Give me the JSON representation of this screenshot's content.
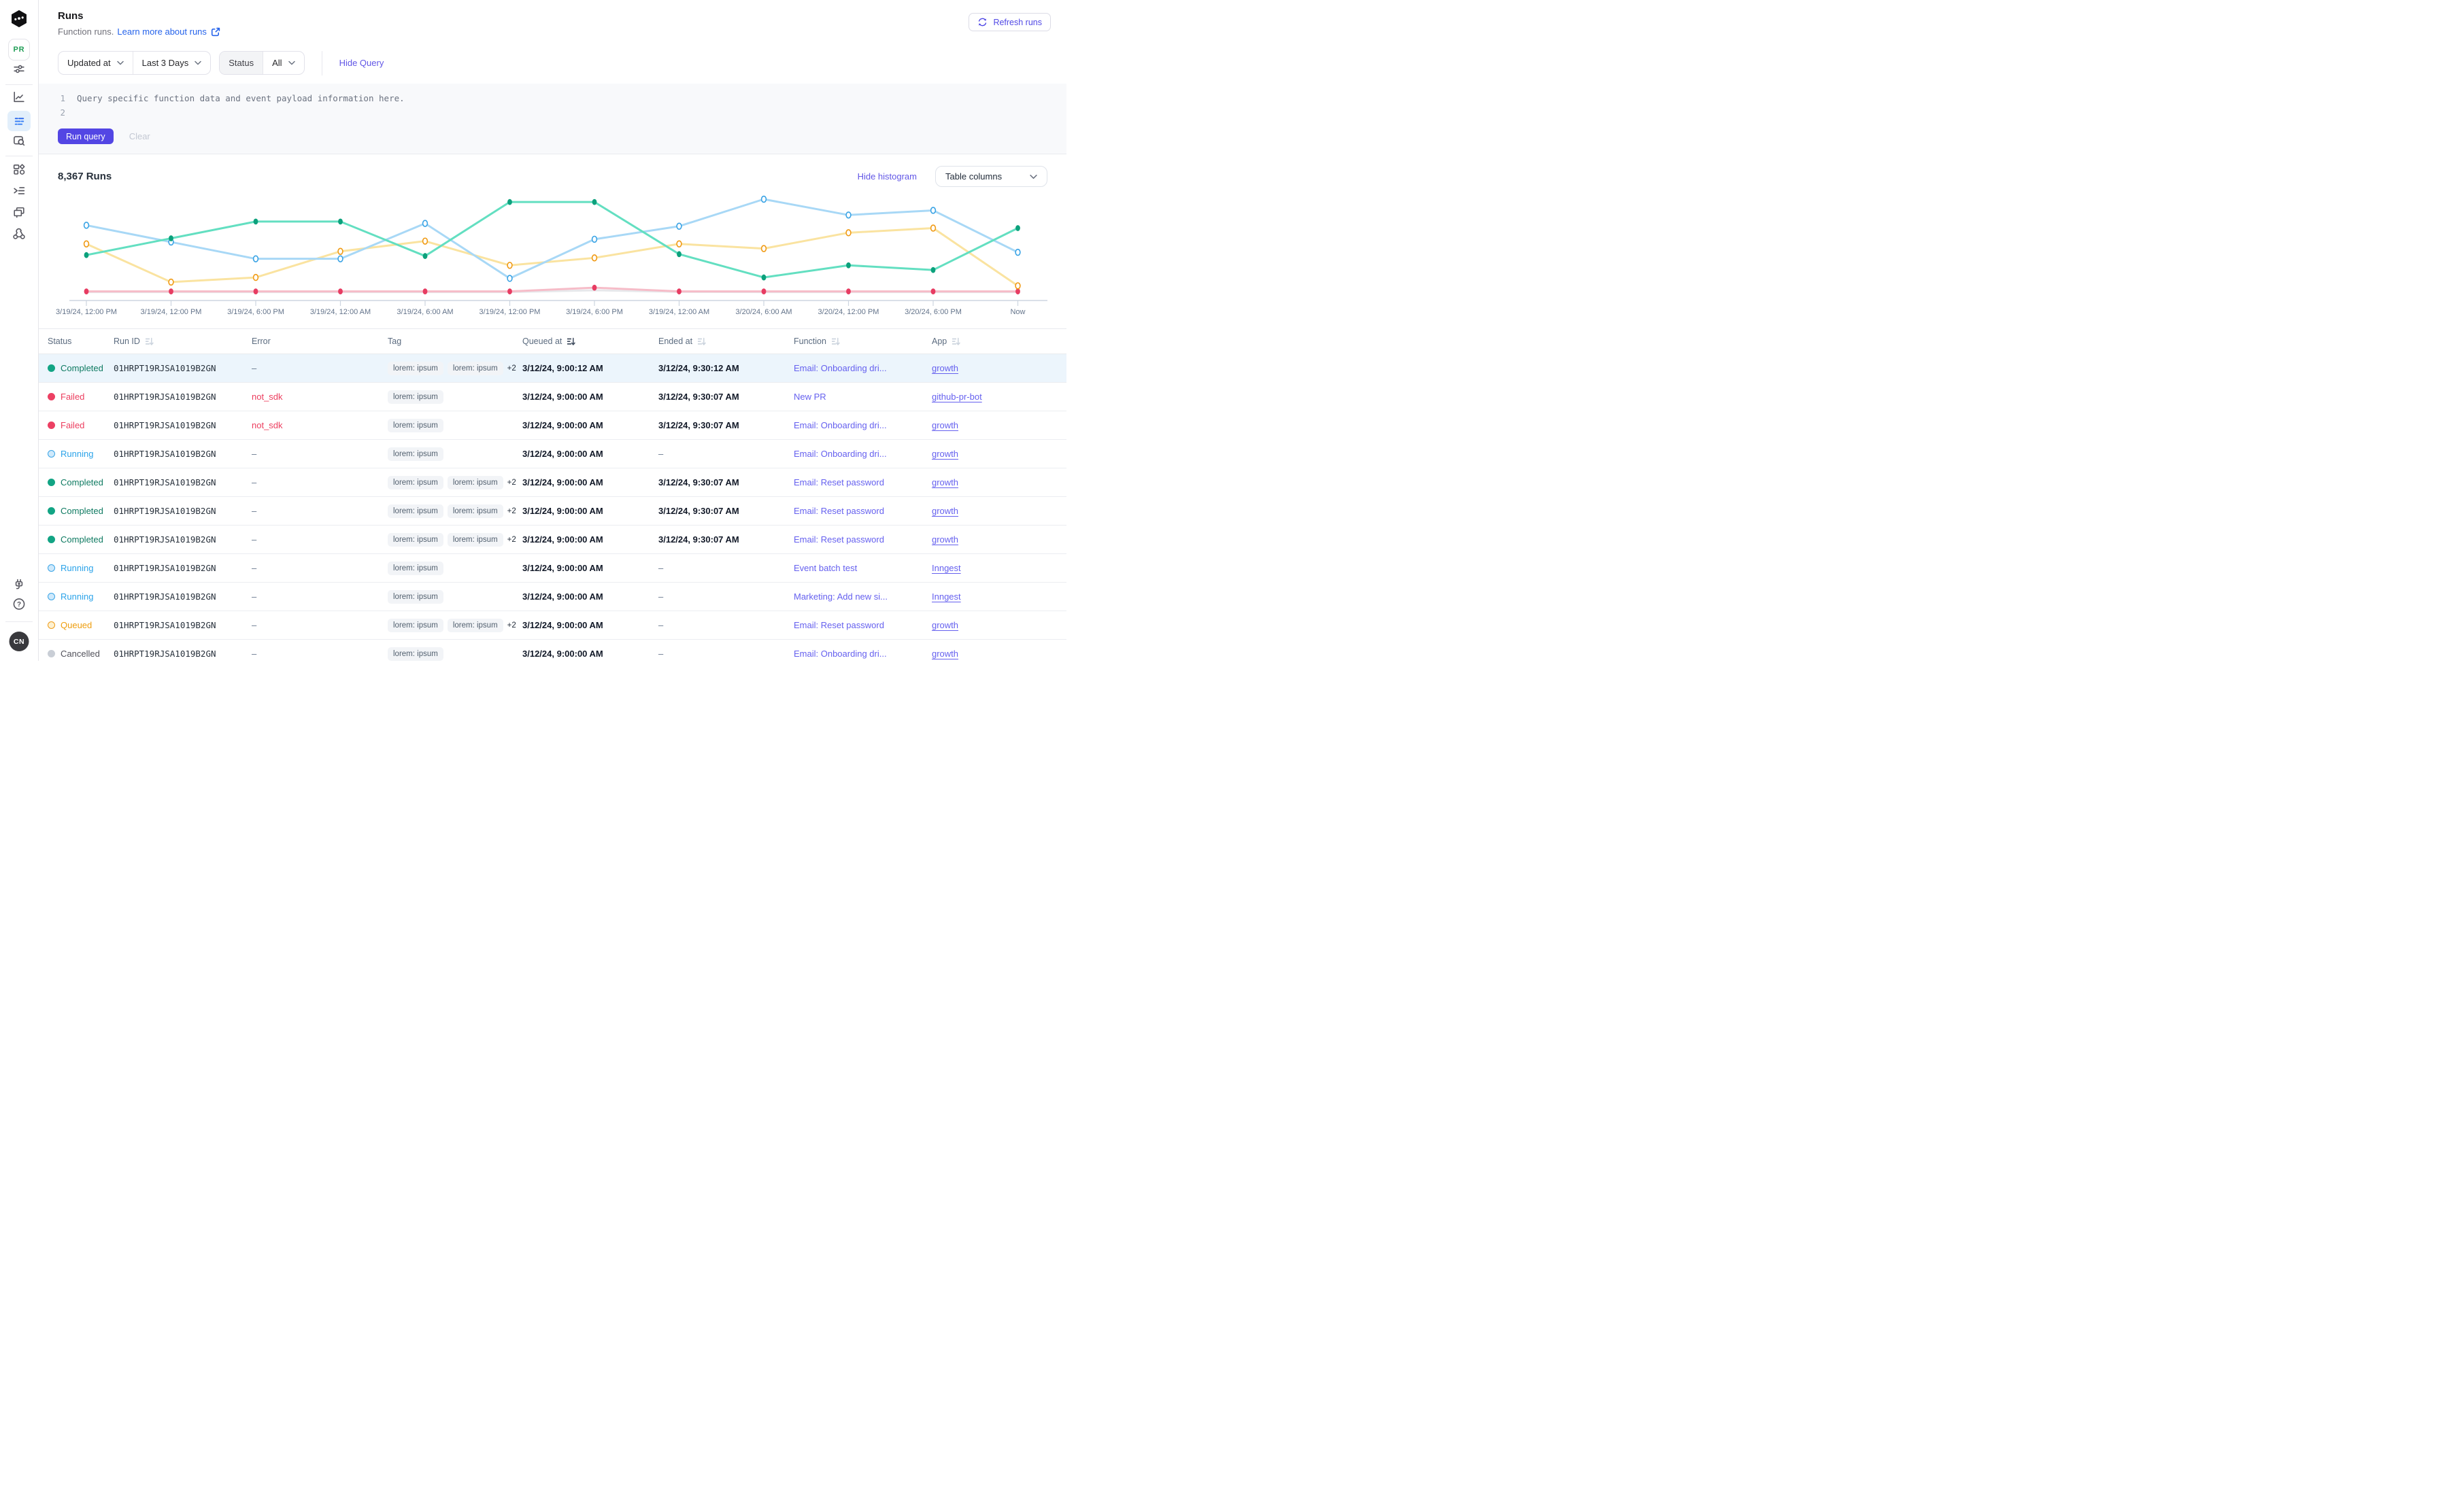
{
  "app_name": "Inngest",
  "sidebar": {
    "workspace_badge": "PR",
    "avatar_initials": "CN",
    "icons_top": [
      "inngest-logo",
      "filter-sliders-icon",
      "metrics-icon",
      "runs-icon",
      "event-search-icon",
      "apps-icon",
      "functions-icon",
      "events-icon",
      "webhook-icon"
    ],
    "icons_bottom": [
      "plug-icon",
      "help-icon",
      "user-avatar"
    ]
  },
  "header": {
    "title": "Runs",
    "subtitle": "Function runs.",
    "learn_more": "Learn more about runs",
    "refresh_label": "Refresh runs"
  },
  "filters": {
    "sort_field": "Updated at",
    "time_range": "Last 3 Days",
    "status_label": "Status",
    "status_value": "All",
    "hide_query": "Hide Query"
  },
  "query": {
    "lines": [
      {
        "num": "1",
        "text": "Query specific function data and event payload information here."
      },
      {
        "num": "2",
        "text": ""
      }
    ],
    "run_label": "Run query",
    "clear_label": "Clear"
  },
  "results": {
    "count_label": "8,367 Runs",
    "hide_histogram": "Hide histogram",
    "table_columns": "Table columns"
  },
  "chart_data": {
    "type": "line",
    "title": "Runs histogram by status",
    "grid": false,
    "legend": "none",
    "ylim": [
      0,
      100
    ],
    "x_tick_labels": [
      "3/19/24, 12:00 PM",
      "3/19/24, 12:00 PM",
      "3/19/24, 6:00 PM",
      "3/19/24, 12:00 AM",
      "3/19/24, 6:00 AM",
      "3/19/24, 12:00 PM",
      "3/19/24, 6:00 PM",
      "3/19/24, 12:00 AM",
      "3/20/24, 6:00 AM",
      "3/20/24, 12:00 PM",
      "3/20/24, 6:00 PM",
      "Now"
    ],
    "series": [
      {
        "name": "Completed",
        "line_color": "#63dfc1",
        "marker_color": "#0ca17c",
        "marker": "filled",
        "values": [
          40,
          58,
          76,
          76,
          39,
          97,
          97,
          41,
          16,
          29,
          24,
          69
        ]
      },
      {
        "name": "Running",
        "line_color": "#a8d8f6",
        "marker_color": "#3ba4e5",
        "marker": "hollow",
        "values": [
          72,
          54,
          36,
          36,
          74,
          15,
          57,
          71,
          100,
          83,
          88,
          43
        ]
      },
      {
        "name": "Queued",
        "line_color": "#fae3a0",
        "marker_color": "#f09b16",
        "marker": "hollow",
        "values": [
          52,
          11,
          16,
          44,
          55,
          29,
          37,
          52,
          47,
          64,
          69,
          7
        ]
      },
      {
        "name": "Failed",
        "line_color": "#f6bcc8",
        "marker_color": "#e73c62",
        "marker": "filled",
        "values": [
          1,
          1,
          1,
          1,
          1,
          1,
          5,
          1,
          1,
          1,
          1,
          1
        ]
      },
      {
        "name": "Cancelled",
        "line_color": "#e7e8eb",
        "marker_color": "#d9dce1",
        "marker": "none",
        "values": [
          0.3,
          0.3,
          0.3,
          0.3,
          0.3,
          0.3,
          2.2,
          0.5,
          0.3,
          0.3,
          0.3,
          0.3
        ]
      }
    ]
  },
  "table": {
    "columns": [
      {
        "label": "Status",
        "sort": false,
        "active": false
      },
      {
        "label": "Run ID",
        "sort": true,
        "active": false
      },
      {
        "label": "Error",
        "sort": false,
        "active": false
      },
      {
        "label": "Tag",
        "sort": false,
        "active": false
      },
      {
        "label": "Queued at",
        "sort": true,
        "active": true
      },
      {
        "label": "Ended at",
        "sort": true,
        "active": false
      },
      {
        "label": "Function",
        "sort": true,
        "active": false
      },
      {
        "label": "App",
        "sort": true,
        "active": false
      }
    ],
    "status_styles": {
      "Completed": {
        "dot": "#12a484",
        "hollow": false,
        "fill": "#12a484",
        "text": "#0e7a61"
      },
      "Failed": {
        "dot": "#ec4063",
        "hollow": false,
        "fill": "#ec4063",
        "text": "#ec3d5e"
      },
      "Running": {
        "dot": "#3aa4e6",
        "hollow": true,
        "fill": "#cfe9fb",
        "text": "#2ba3e9"
      },
      "Queued": {
        "dot": "#ef9c18",
        "hollow": true,
        "fill": "#fdf1d2",
        "text": "#ee9d0e"
      },
      "Cancelled": {
        "dot": "#c9ced6",
        "hollow": false,
        "fill": "#c9ced6",
        "text": "#52525b"
      }
    },
    "rows": [
      {
        "selected": true,
        "status": "Completed",
        "run_id": "01HRPT19RJSA1019B2GN",
        "error": "–",
        "tags": [
          "lorem: ipsum",
          "lorem: ipsum"
        ],
        "extra": "+2",
        "queued_at": "3/12/24, 9:00:12 AM",
        "ended_at": "3/12/24, 9:30:12 AM",
        "function": "Email: Onboarding dri...",
        "app": "growth"
      },
      {
        "selected": false,
        "status": "Failed",
        "run_id": "01HRPT19RJSA1019B2GN",
        "error": "not_sdk",
        "tags": [
          "lorem: ipsum"
        ],
        "extra": "",
        "queued_at": "3/12/24, 9:00:00 AM",
        "ended_at": "3/12/24, 9:30:07 AM",
        "function": "New PR",
        "app": "github-pr-bot"
      },
      {
        "selected": false,
        "status": "Failed",
        "run_id": "01HRPT19RJSA1019B2GN",
        "error": "not_sdk",
        "tags": [
          "lorem: ipsum"
        ],
        "extra": "",
        "queued_at": "3/12/24, 9:00:00 AM",
        "ended_at": "3/12/24, 9:30:07 AM",
        "function": "Email: Onboarding dri...",
        "app": "growth"
      },
      {
        "selected": false,
        "status": "Running",
        "run_id": "01HRPT19RJSA1019B2GN",
        "error": "–",
        "tags": [
          "lorem: ipsum"
        ],
        "extra": "",
        "queued_at": "3/12/24, 9:00:00 AM",
        "ended_at": "–",
        "function": "Email: Onboarding dri...",
        "app": "growth"
      },
      {
        "selected": false,
        "status": "Completed",
        "run_id": "01HRPT19RJSA1019B2GN",
        "error": "–",
        "tags": [
          "lorem: ipsum",
          "lorem: ipsum"
        ],
        "extra": "+2",
        "queued_at": "3/12/24, 9:00:00 AM",
        "ended_at": "3/12/24, 9:30:07 AM",
        "function": "Email: Reset password",
        "app": "growth"
      },
      {
        "selected": false,
        "status": "Completed",
        "run_id": "01HRPT19RJSA1019B2GN",
        "error": "–",
        "tags": [
          "lorem: ipsum",
          "lorem: ipsum"
        ],
        "extra": "+2",
        "queued_at": "3/12/24, 9:00:00 AM",
        "ended_at": "3/12/24, 9:30:07 AM",
        "function": "Email: Reset password",
        "app": "growth"
      },
      {
        "selected": false,
        "status": "Completed",
        "run_id": "01HRPT19RJSA1019B2GN",
        "error": "–",
        "tags": [
          "lorem: ipsum",
          "lorem: ipsum"
        ],
        "extra": "+2",
        "queued_at": "3/12/24, 9:00:00 AM",
        "ended_at": "3/12/24, 9:30:07 AM",
        "function": "Email: Reset password",
        "app": "growth"
      },
      {
        "selected": false,
        "status": "Running",
        "run_id": "01HRPT19RJSA1019B2GN",
        "error": "–",
        "tags": [
          "lorem: ipsum"
        ],
        "extra": "",
        "queued_at": "3/12/24, 9:00:00 AM",
        "ended_at": "–",
        "function": "Event batch test",
        "app": "Inngest"
      },
      {
        "selected": false,
        "status": "Running",
        "run_id": "01HRPT19RJSA1019B2GN",
        "error": "–",
        "tags": [
          "lorem: ipsum"
        ],
        "extra": "",
        "queued_at": "3/12/24, 9:00:00 AM",
        "ended_at": "–",
        "function": "Marketing: Add new si...",
        "app": "Inngest"
      },
      {
        "selected": false,
        "status": "Queued",
        "run_id": "01HRPT19RJSA1019B2GN",
        "error": "–",
        "tags": [
          "lorem: ipsum",
          "lorem: ipsum"
        ],
        "extra": "+2",
        "queued_at": "3/12/24, 9:00:00 AM",
        "ended_at": "–",
        "function": "Email: Reset password",
        "app": "growth"
      },
      {
        "selected": false,
        "status": "Cancelled",
        "run_id": "01HRPT19RJSA1019B2GN",
        "error": "–",
        "tags": [
          "lorem: ipsum"
        ],
        "extra": "",
        "queued_at": "3/12/24, 9:00:00 AM",
        "ended_at": "–",
        "function": "Email: Onboarding dri...",
        "app": "growth"
      }
    ]
  },
  "colors": {
    "accent_purple": "#5346e4",
    "link_blue": "#2563eb",
    "selected_row_bg": "#ecf5fc",
    "axis_label": "#64748b",
    "border": "#e8eaee"
  }
}
